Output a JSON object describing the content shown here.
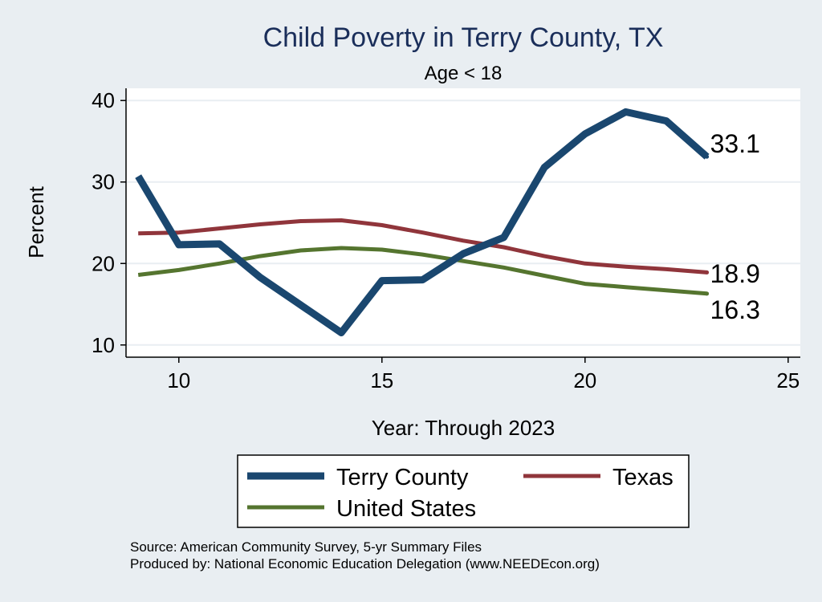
{
  "chart_data": {
    "type": "line",
    "title": "Child Poverty in Terry County, TX",
    "subtitle": "Age < 18",
    "xlabel": "Year: Through 2023",
    "ylabel": "Percent",
    "xlim": [
      8.7,
      25.3
    ],
    "ylim": [
      8.5,
      41.5
    ],
    "x_ticks": [
      10,
      15,
      20,
      25
    ],
    "y_ticks": [
      10,
      20,
      30,
      40
    ],
    "grid": true,
    "legend_position": "bottom",
    "x": [
      9,
      10,
      11,
      12,
      13,
      14,
      15,
      16,
      17,
      18,
      19,
      20,
      21,
      22,
      23
    ],
    "series": [
      {
        "name": "Terry County",
        "color": "#1a476f",
        "values": [
          30.7,
          22.3,
          22.4,
          18.3,
          14.9,
          11.5,
          17.9,
          18.0,
          21.2,
          23.2,
          31.8,
          35.9,
          38.6,
          37.5,
          33.1
        ],
        "end_label": "33.1"
      },
      {
        "name": "Texas",
        "color": "#90353b",
        "values": [
          23.7,
          23.8,
          24.3,
          24.8,
          25.2,
          25.3,
          24.7,
          23.8,
          22.8,
          22.0,
          20.9,
          20.0,
          19.6,
          19.3,
          18.9
        ],
        "end_label": "18.9"
      },
      {
        "name": "United States",
        "color": "#55752f",
        "values": [
          18.6,
          19.2,
          20.0,
          20.9,
          21.6,
          21.9,
          21.7,
          21.1,
          20.3,
          19.5,
          18.5,
          17.5,
          17.1,
          16.7,
          16.3
        ],
        "end_label": "16.3"
      }
    ],
    "source_note": "Source: American Community Survey, 5-yr Summary Files",
    "credit_note": "Produced by: National Economic Education Delegation (www.NEEDEcon.org)"
  },
  "colors": {
    "background": "#e9eef2",
    "plot_background": "#ffffff",
    "grid": "#e9eef2",
    "title": "#1a2e5a",
    "text": "#000000"
  }
}
